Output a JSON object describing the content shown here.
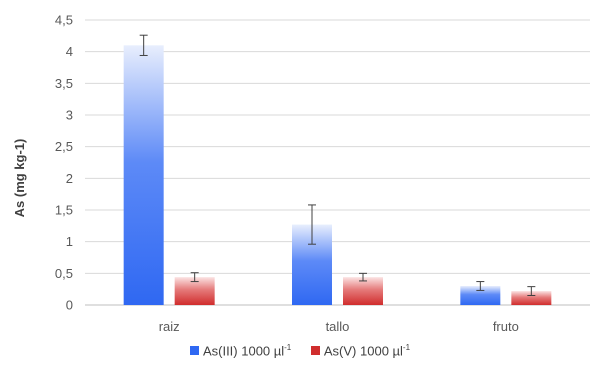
{
  "colors": {
    "series1_top": "#e8eefd",
    "series1_mid": "#5d8af7",
    "series1_bottom": "#2f68f2",
    "series2_top": "#fbe3e3",
    "series2_mid": "#e57a7a",
    "series2_bottom": "#d02d2d",
    "grid": "#d9d9d9",
    "axis": "#bfbfbf",
    "errorbar": "#404040"
  },
  "chart_data": {
    "type": "bar",
    "title": "",
    "xlabel": "",
    "ylabel": "As (mg kg-1)",
    "ylim": [
      0,
      4.5
    ],
    "yticks": [
      "0",
      "0,5",
      "1",
      "1,5",
      "2",
      "2,5",
      "3",
      "3,5",
      "4",
      "4,5"
    ],
    "ytick_values": [
      0,
      0.5,
      1,
      1.5,
      2,
      2.5,
      3,
      3.5,
      4,
      4.5
    ],
    "grid": true,
    "legend_position": "bottom",
    "categories": [
      "raiz",
      "tallo",
      "fruto"
    ],
    "series": [
      {
        "name": "As(III) 1000 µl",
        "name_sup": "-1",
        "values": [
          4.1,
          1.27,
          0.3
        ],
        "error": [
          0.16,
          0.31,
          0.07
        ]
      },
      {
        "name": "As(V) 1000 µl",
        "name_sup": "-1",
        "values": [
          0.44,
          0.44,
          0.22
        ],
        "error": [
          0.07,
          0.06,
          0.07
        ]
      }
    ]
  }
}
